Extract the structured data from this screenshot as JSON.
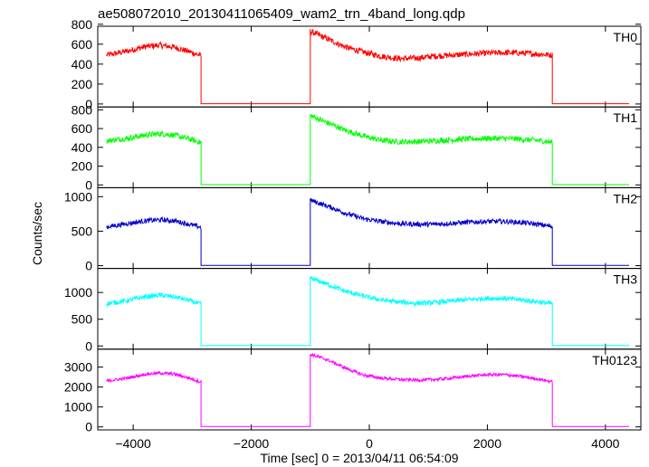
{
  "title": "ae508072010_20130411065409_wam2_trn_4band_long.qdp",
  "xlabel": "Time [sec] 0 = 2013/04/11 06:54:09",
  "ylabel": "Counts/sec",
  "chart_data": {
    "type": "line",
    "title": "ae508072010_20130411065409_wam2_trn_4band_long.qdp",
    "xlabel": "Time [sec] 0 = 2013/04/11 06:54:09",
    "ylabel": "Counts/sec",
    "xlim": [
      -4600,
      4600
    ],
    "x_ticks": [
      -4000,
      -2000,
      0,
      2000,
      4000
    ],
    "x_tick_labels": [
      "−4000",
      "−2000",
      "0",
      "2000",
      "4000"
    ],
    "grid": false,
    "segments": [
      {
        "x_start": -4450,
        "x_end": -2850
      },
      {
        "x_start": -1000,
        "x_end": 3100
      }
    ],
    "background_x": [
      -2850,
      4400
    ],
    "panels": [
      {
        "name": "TH0",
        "color": "#ff0000",
        "ylim": [
          -30,
          780
        ],
        "yticks": [
          0,
          200,
          400,
          600,
          800
        ],
        "ytick_labels": [
          "0",
          "200",
          "400",
          "600",
          "800"
        ],
        "noise": 30,
        "background": 3,
        "points": [
          [
            -4450,
            490
          ],
          [
            -4100,
            530
          ],
          [
            -3800,
            575
          ],
          [
            -3550,
            590
          ],
          [
            -3300,
            570
          ],
          [
            -3050,
            525
          ],
          [
            -2850,
            485
          ],
          [
            -1000,
            730
          ],
          [
            -700,
            650
          ],
          [
            -400,
            570
          ],
          [
            -100,
            520
          ],
          [
            200,
            480
          ],
          [
            500,
            455
          ],
          [
            800,
            460
          ],
          [
            1100,
            480
          ],
          [
            1400,
            490
          ],
          [
            1700,
            500
          ],
          [
            2000,
            510
          ],
          [
            2300,
            515
          ],
          [
            2600,
            510
          ],
          [
            2900,
            500
          ],
          [
            3100,
            490
          ]
        ]
      },
      {
        "name": "TH1",
        "color": "#00ff00",
        "ylim": [
          -30,
          830
        ],
        "yticks": [
          0,
          200,
          400,
          600,
          800
        ],
        "ytick_labels": [
          "0",
          "200",
          "400",
          "600",
          "800"
        ],
        "noise": 30,
        "background": 3,
        "points": [
          [
            -4450,
            470
          ],
          [
            -4100,
            495
          ],
          [
            -3800,
            530
          ],
          [
            -3550,
            545
          ],
          [
            -3300,
            530
          ],
          [
            -3050,
            490
          ],
          [
            -2850,
            450
          ],
          [
            -1000,
            740
          ],
          [
            -700,
            660
          ],
          [
            -400,
            580
          ],
          [
            -100,
            520
          ],
          [
            200,
            475
          ],
          [
            500,
            460
          ],
          [
            800,
            460
          ],
          [
            1100,
            470
          ],
          [
            1400,
            480
          ],
          [
            1700,
            490
          ],
          [
            2000,
            495
          ],
          [
            2300,
            495
          ],
          [
            2600,
            485
          ],
          [
            2900,
            470
          ],
          [
            3100,
            455
          ]
        ]
      },
      {
        "name": "TH2",
        "color": "#0000cc",
        "ylim": [
          -40,
          1130
        ],
        "yticks": [
          0,
          500,
          1000
        ],
        "ytick_labels": [
          "0",
          "500",
          "1000"
        ],
        "noise": 35,
        "background": 5,
        "points": [
          [
            -4450,
            560
          ],
          [
            -4100,
            610
          ],
          [
            -3800,
            650
          ],
          [
            -3550,
            665
          ],
          [
            -3300,
            650
          ],
          [
            -3050,
            600
          ],
          [
            -2850,
            555
          ],
          [
            -1000,
            950
          ],
          [
            -700,
            860
          ],
          [
            -400,
            760
          ],
          [
            -100,
            680
          ],
          [
            200,
            640
          ],
          [
            500,
            610
          ],
          [
            800,
            600
          ],
          [
            1100,
            600
          ],
          [
            1400,
            615
          ],
          [
            1700,
            630
          ],
          [
            2000,
            640
          ],
          [
            2300,
            640
          ],
          [
            2600,
            625
          ],
          [
            2900,
            595
          ],
          [
            3100,
            565
          ]
        ]
      },
      {
        "name": "TH3",
        "color": "#00ffff",
        "ylim": [
          -60,
          1450
        ],
        "yticks": [
          0,
          500,
          1000
        ],
        "ytick_labels": [
          "0",
          "500",
          "1000"
        ],
        "noise": 45,
        "background": 8,
        "points": [
          [
            -4450,
            790
          ],
          [
            -4100,
            850
          ],
          [
            -3800,
            920
          ],
          [
            -3550,
            950
          ],
          [
            -3300,
            920
          ],
          [
            -3050,
            850
          ],
          [
            -2850,
            780
          ],
          [
            -1000,
            1270
          ],
          [
            -700,
            1150
          ],
          [
            -400,
            1020
          ],
          [
            -100,
            930
          ],
          [
            200,
            860
          ],
          [
            500,
            820
          ],
          [
            800,
            800
          ],
          [
            1100,
            810
          ],
          [
            1400,
            840
          ],
          [
            1700,
            870
          ],
          [
            2000,
            890
          ],
          [
            2300,
            890
          ],
          [
            2600,
            860
          ],
          [
            2900,
            820
          ],
          [
            3100,
            790
          ]
        ]
      },
      {
        "name": "TH0123",
        "color": "#ff00ff",
        "ylim": [
          -150,
          3900
        ],
        "yticks": [
          0,
          1000,
          2000,
          3000
        ],
        "ytick_labels": [
          "0",
          "1000",
          "2000",
          "3000"
        ],
        "noise": 80,
        "background": 20,
        "points": [
          [
            -4450,
            2300
          ],
          [
            -4100,
            2450
          ],
          [
            -3800,
            2640
          ],
          [
            -3550,
            2700
          ],
          [
            -3300,
            2650
          ],
          [
            -3050,
            2450
          ],
          [
            -2850,
            2250
          ],
          [
            -1000,
            3650
          ],
          [
            -700,
            3350
          ],
          [
            -400,
            2950
          ],
          [
            -100,
            2600
          ],
          [
            200,
            2450
          ],
          [
            500,
            2380
          ],
          [
            800,
            2350
          ],
          [
            1100,
            2380
          ],
          [
            1400,
            2450
          ],
          [
            1700,
            2550
          ],
          [
            2000,
            2620
          ],
          [
            2300,
            2620
          ],
          [
            2600,
            2520
          ],
          [
            2900,
            2380
          ],
          [
            3100,
            2260
          ]
        ]
      }
    ]
  }
}
